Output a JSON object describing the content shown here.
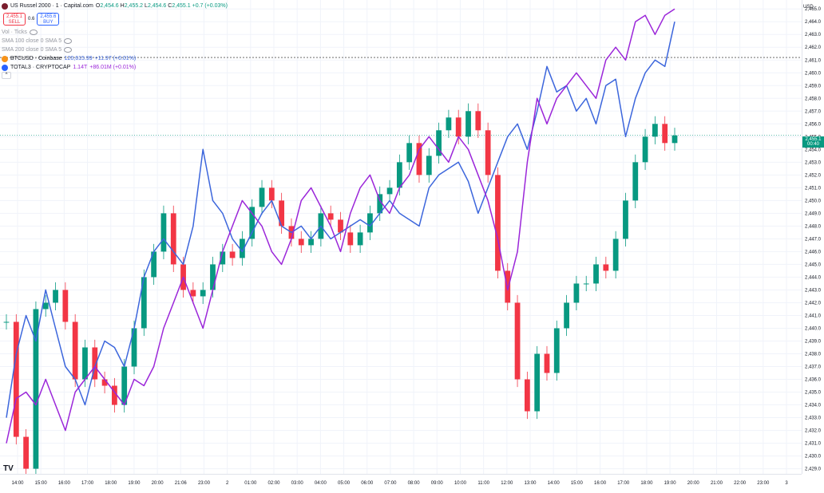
{
  "header": {
    "symbol_title": "US Russel 2000 · 1 · Capital.com",
    "ohlc": {
      "o_label": "O",
      "o": "2,454.6",
      "h_label": "H",
      "h": "2,455.2",
      "l_label": "L",
      "l": "2,454.6",
      "c_label": "C",
      "c": "2,455.1",
      "change": "+0.7 (+0.03%)"
    },
    "sell_price": "2,455.1",
    "sell_label": "SELL",
    "spread": "0.6",
    "buy_price": "2,455.6",
    "buy_label": "BUY",
    "indicators": [
      "Vol · Ticks",
      "SMA 100 close 0 SMA 5",
      "SMA 200 close 0 SMA 5"
    ],
    "compare": [
      {
        "name": "BTCUSD · Coinbase",
        "value": "120,615.99",
        "change": "+11.97 (+0.01%)",
        "color": "#3c66dc",
        "icon_color": "#f7931a"
      },
      {
        "name": "TOTAL3 · CRYPTOCAP",
        "value": "1.14T",
        "change": "+86.01M (+0.01%)",
        "color": "#9b26d9",
        "icon_color": "#2962ff"
      }
    ]
  },
  "axis": {
    "currency": "USD",
    "last_price": "2,455.1",
    "countdown": "00:40"
  },
  "chart_data": {
    "type": "line",
    "title": "US Russel 2000 · 1 · Capital.com",
    "y_ticks": [
      "2,465.0",
      "2,464.0",
      "2,463.0",
      "2,462.0",
      "2,461.0",
      "2,460.0",
      "2,459.0",
      "2,458.0",
      "2,457.0",
      "2,456.0",
      "2,455.0",
      "2,454.0",
      "2,453.0",
      "2,452.0",
      "2,451.0",
      "2,450.0",
      "2,449.0",
      "2,448.0",
      "2,447.0",
      "2,446.0",
      "2,445.0",
      "2,444.0",
      "2,443.0",
      "2,442.0",
      "2,441.0",
      "2,440.0",
      "2,439.0",
      "2,438.0",
      "2,437.0",
      "2,436.0",
      "2,435.0",
      "2,434.0",
      "2,433.0",
      "2,432.0",
      "2,431.0",
      "2,430.0",
      "2,429.0"
    ],
    "x_ticks": [
      "14:00",
      "15:00",
      "16:00",
      "17:00",
      "18:00",
      "19:00",
      "20:00",
      "21:06",
      "23:00",
      "2",
      "01:00",
      "02:00",
      "03:00",
      "04:00",
      "05:00",
      "06:00",
      "07:00",
      "08:00",
      "09:00",
      "10:00",
      "11:00",
      "12:00",
      "13:00",
      "14:00",
      "15:00",
      "16:00",
      "17:00",
      "18:00",
      "19:00",
      "20:00",
      "21:00",
      "22:00",
      "23:00",
      "3"
    ],
    "ylim": [
      2428.6,
      2465.7
    ],
    "reference_price": 2461.2,
    "last_price": 2455.1,
    "series": [
      {
        "name": "US Russel 2000",
        "style": "candles",
        "x": [
          0,
          1,
          2,
          3,
          4,
          5,
          6,
          7,
          8,
          9,
          10,
          11,
          12,
          13,
          14,
          15,
          16,
          17,
          18,
          19,
          20,
          21,
          22,
          23,
          24,
          25,
          26,
          27,
          28,
          29,
          30,
          31,
          32,
          33,
          34,
          35,
          36,
          37,
          38,
          39,
          40,
          41,
          42,
          43,
          44,
          45,
          46,
          47,
          48,
          49,
          50,
          51,
          52,
          53,
          54,
          55,
          56,
          57,
          58,
          59,
          60,
          61,
          62,
          63,
          64,
          65,
          66,
          67,
          68
        ],
        "values": [
          2440.5,
          2431.5,
          2429.0,
          2441.5,
          2442.0,
          2443.0,
          2440.5,
          2436.0,
          2438.5,
          2436.0,
          2435.5,
          2434.0,
          2437.0,
          2440.0,
          2444.0,
          2446.0,
          2449.0,
          2445.0,
          2443.0,
          2442.5,
          2443.0,
          2445.0,
          2446.0,
          2445.5,
          2447.0,
          2449.5,
          2451.0,
          2450.0,
          2448.0,
          2447.0,
          2446.5,
          2447.0,
          2449.0,
          2448.5,
          2447.5,
          2446.5,
          2447.5,
          2449.0,
          2450.5,
          2451.0,
          2453.0,
          2454.5,
          2452.0,
          2453.5,
          2455.5,
          2456.5,
          2455.0,
          2457.0,
          2455.5,
          2452.0,
          2444.5,
          2442.0,
          2436.0,
          2433.5,
          2438.0,
          2436.5,
          2440.0,
          2442.0,
          2443.5,
          2443.5,
          2445.0,
          2444.5,
          2447.0,
          2450.0,
          2453.0,
          2455.0,
          2456.0,
          2454.5,
          2455.1
        ]
      },
      {
        "name": "BTCUSD",
        "style": "line",
        "x": [
          0,
          1,
          2,
          3,
          4,
          5,
          6,
          7,
          8,
          9,
          10,
          11,
          12,
          13,
          14,
          15,
          16,
          17,
          18,
          19,
          20,
          21,
          22,
          23,
          24,
          25,
          26,
          27,
          28,
          29,
          30,
          31,
          32,
          33,
          34,
          35,
          36,
          37,
          38,
          39,
          40,
          41,
          42,
          43,
          44,
          45,
          46,
          47,
          48,
          49,
          50,
          51,
          52,
          53,
          54,
          55,
          56,
          57,
          58,
          59,
          60,
          61,
          62,
          63,
          64,
          65,
          66,
          67,
          68
        ],
        "values": [
          2433.0,
          2438.0,
          2441.0,
          2439.0,
          2443.0,
          2440.0,
          2437.0,
          2436.0,
          2434.0,
          2437.0,
          2439.0,
          2438.5,
          2437.0,
          2440.0,
          2444.0,
          2446.0,
          2447.0,
          2446.0,
          2445.0,
          2448.0,
          2454.0,
          2450.0,
          2449.0,
          2447.0,
          2446.0,
          2447.5,
          2449.0,
          2450.0,
          2448.0,
          2447.5,
          2448.0,
          2447.0,
          2448.0,
          2447.0,
          2447.5,
          2448.0,
          2448.5,
          2448.0,
          2449.0,
          2450.0,
          2449.0,
          2448.5,
          2448.0,
          2451.0,
          2452.0,
          2452.5,
          2453.0,
          2451.5,
          2449.0,
          2451.0,
          2453.0,
          2455.0,
          2456.0,
          2454.0,
          2457.0,
          2460.5,
          2458.5,
          2459.0,
          2457.0,
          2458.0,
          2456.0,
          2459.0,
          2459.5,
          2455.0,
          2458.0,
          2460.0,
          2461.0,
          2460.5,
          2464.0
        ]
      },
      {
        "name": "TOTAL3",
        "style": "line",
        "x": [
          0,
          1,
          2,
          3,
          4,
          5,
          6,
          7,
          8,
          9,
          10,
          11,
          12,
          13,
          14,
          15,
          16,
          17,
          18,
          19,
          20,
          21,
          22,
          23,
          24,
          25,
          26,
          27,
          28,
          29,
          30,
          31,
          32,
          33,
          34,
          35,
          36,
          37,
          38,
          39,
          40,
          41,
          42,
          43,
          44,
          45,
          46,
          47,
          48,
          49,
          50,
          51,
          52,
          53,
          54,
          55,
          56,
          57,
          58,
          59,
          60,
          61,
          62,
          63,
          64,
          65,
          66,
          67,
          68
        ],
        "values": [
          2431.0,
          2434.5,
          2435.0,
          2434.0,
          2436.0,
          2434.0,
          2432.0,
          2435.0,
          2436.0,
          2437.0,
          2436.0,
          2435.0,
          2434.0,
          2436.0,
          2435.5,
          2437.0,
          2440.0,
          2442.0,
          2444.0,
          2442.0,
          2440.0,
          2443.0,
          2446.0,
          2448.0,
          2450.0,
          2449.0,
          2448.0,
          2446.0,
          2445.0,
          2447.0,
          2450.0,
          2451.0,
          2449.5,
          2448.0,
          2446.0,
          2449.0,
          2451.0,
          2452.0,
          2450.0,
          2449.0,
          2451.0,
          2452.0,
          2454.0,
          2455.0,
          2454.0,
          2453.0,
          2455.0,
          2454.0,
          2452.0,
          2450.0,
          2447.0,
          2443.0,
          2446.0,
          2453.0,
          2458.0,
          2456.0,
          2458.0,
          2459.0,
          2460.0,
          2459.0,
          2458.0,
          2461.0,
          2462.0,
          2461.0,
          2464.0,
          2464.5,
          2463.0,
          2464.5,
          2465.0
        ]
      }
    ]
  }
}
